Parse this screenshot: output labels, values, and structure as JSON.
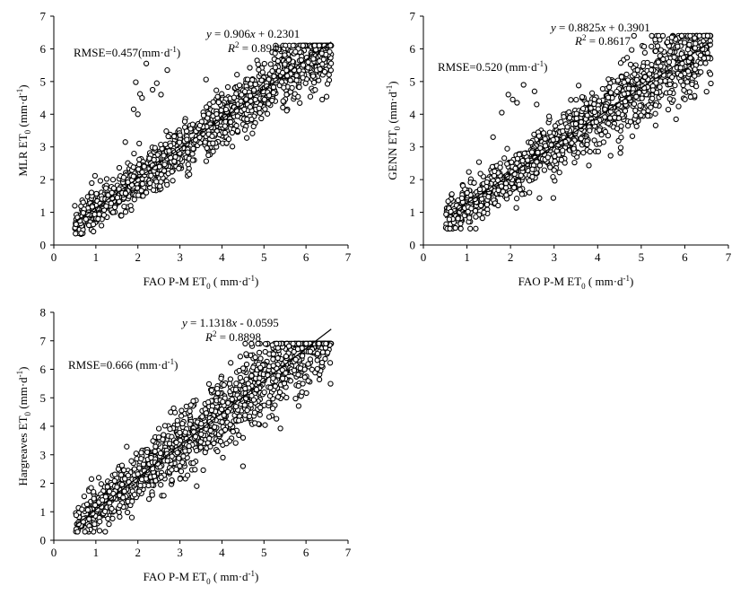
{
  "chart_data": [
    {
      "type": "scatter",
      "title": "",
      "xlabel": "FAO P-M ET",
      "xlabel_sub": "0",
      "xlabel_unit": " ( mm·d",
      "xlabel_sup": "-1",
      "xlabel_close": ")",
      "ylabel": "MLR ET",
      "ylabel_sub": "0",
      "ylabel_unit": " (mm·d",
      "ylabel_sup": "-1",
      "ylabel_close": ")",
      "xlim": [
        0,
        7
      ],
      "ylim": [
        0,
        7
      ],
      "xticks": [
        "0",
        "1",
        "2",
        "3",
        "4",
        "5",
        "6",
        "7"
      ],
      "yticks": [
        "0",
        "1",
        "2",
        "3",
        "4",
        "5",
        "6",
        "7"
      ],
      "equation_parts": [
        {
          "t": "y",
          "i": true
        },
        {
          "t": " = 0.906"
        },
        {
          "t": "x",
          "i": true
        },
        {
          "t": " + 0.2301"
        }
      ],
      "r2_parts": [
        {
          "t": "R",
          "i": true
        },
        {
          "t": "2",
          "sup": true
        },
        {
          "t": " = 0.8941"
        }
      ],
      "rmse_label": "RMSE=0.457(mm·d",
      "rmse_sup": "-1",
      "rmse_close": ")",
      "fit": {
        "slope": 0.906,
        "intercept": 0.2301,
        "x_range": [
          0.5,
          6.6
        ]
      },
      "series": [
        {
          "generated": true,
          "n": 1300,
          "seed": 11,
          "x_min": 0.5,
          "x_max": 6.6,
          "slope": 0.906,
          "intercept": 0.2301,
          "sd": 0.42,
          "y_min": 0.0,
          "y_max": 6.1
        }
      ],
      "outliers": [
        [
          1.95,
          4.98
        ],
        [
          2.05,
          4.62
        ],
        [
          2.1,
          4.5
        ],
        [
          2.2,
          5.55
        ],
        [
          2.35,
          4.75
        ],
        [
          2.45,
          4.95
        ],
        [
          2.55,
          4.6
        ],
        [
          2.7,
          5.35
        ],
        [
          1.7,
          3.15
        ],
        [
          1.9,
          4.15
        ],
        [
          2.0,
          4.0
        ]
      ]
    },
    {
      "type": "scatter",
      "title": "",
      "xlabel": "FAO P-M ET",
      "xlabel_sub": "0",
      "xlabel_unit": " ( mm·d",
      "xlabel_sup": "-1",
      "xlabel_close": ")",
      "ylabel": "GENN ET",
      "ylabel_sub": "0",
      "ylabel_unit": " (mm·d",
      "ylabel_sup": "-1",
      "ylabel_close": ")",
      "xlim": [
        0,
        7
      ],
      "ylim": [
        0,
        7
      ],
      "xticks": [
        "0",
        "1",
        "2",
        "3",
        "4",
        "5",
        "6",
        "7"
      ],
      "yticks": [
        "0",
        "1",
        "2",
        "3",
        "4",
        "5",
        "6",
        "7"
      ],
      "equation_parts": [
        {
          "t": "y",
          "i": true
        },
        {
          "t": " = 0.8825"
        },
        {
          "t": "x",
          "i": true
        },
        {
          "t": " + 0.3901"
        }
      ],
      "r2_parts": [
        {
          "t": "R",
          "i": true
        },
        {
          "t": "2",
          "sup": true
        },
        {
          "t": " = 0.8617"
        }
      ],
      "rmse_label": "RMSE=0.520 (mm·d",
      "rmse_sup": "-1",
      "rmse_close": ")",
      "fit": {
        "slope": 0.8825,
        "intercept": 0.3901,
        "x_range": [
          0.5,
          6.6
        ]
      },
      "series": [
        {
          "generated": true,
          "n": 1300,
          "seed": 23,
          "x_min": 0.5,
          "x_max": 6.6,
          "slope": 0.8825,
          "intercept": 0.3901,
          "sd": 0.48,
          "y_min": 0.5,
          "y_max": 6.4
        }
      ],
      "outliers": [
        [
          1.8,
          4.05
        ],
        [
          1.95,
          4.6
        ],
        [
          2.05,
          4.45
        ],
        [
          2.15,
          4.35
        ],
        [
          2.3,
          4.9
        ],
        [
          1.6,
          3.3
        ],
        [
          2.55,
          4.7
        ],
        [
          2.6,
          4.3
        ],
        [
          5.7,
          6.35
        ],
        [
          5.6,
          6.2
        ]
      ]
    },
    {
      "type": "scatter",
      "title": "",
      "xlabel": "FAO P-M ET",
      "xlabel_sub": "0",
      "xlabel_unit": " ( mm·d",
      "xlabel_sup": "-1",
      "xlabel_close": ")",
      "ylabel": "Hargreaves ET",
      "ylabel_sub": "0",
      "ylabel_unit": " (mm·d",
      "ylabel_sup": "-1",
      "ylabel_close": ")",
      "xlim": [
        0,
        7
      ],
      "ylim": [
        0,
        8
      ],
      "xticks": [
        "0",
        "1",
        "2",
        "3",
        "4",
        "5",
        "6",
        "7"
      ],
      "yticks": [
        "0",
        "1",
        "2",
        "3",
        "4",
        "5",
        "6",
        "7",
        "8"
      ],
      "equation_parts": [
        {
          "t": "y",
          "i": true
        },
        {
          "t": " = 1.1318"
        },
        {
          "t": "x",
          "i": true
        },
        {
          "t": " - 0.0595"
        }
      ],
      "r2_parts": [
        {
          "t": "R",
          "i": true
        },
        {
          "t": "2",
          "sup": true
        },
        {
          "t": " = 0.8898"
        }
      ],
      "rmse_label": "RMSE=0.666 (mm·d",
      "rmse_sup": "-1",
      "rmse_close": ")",
      "fit": {
        "slope": 1.1318,
        "intercept": -0.0595,
        "x_range": [
          0.5,
          6.6
        ]
      },
      "series": [
        {
          "generated": true,
          "n": 1300,
          "seed": 37,
          "x_min": 0.5,
          "x_max": 6.6,
          "slope": 1.1318,
          "intercept": -0.0595,
          "sd": 0.6,
          "y_min": 0.3,
          "y_max": 6.9
        }
      ],
      "outliers": [
        [
          5.2,
          6.85
        ],
        [
          5.3,
          6.9
        ],
        [
          6.4,
          6.6
        ],
        [
          3.4,
          1.9
        ],
        [
          4.5,
          2.6
        ]
      ]
    }
  ]
}
